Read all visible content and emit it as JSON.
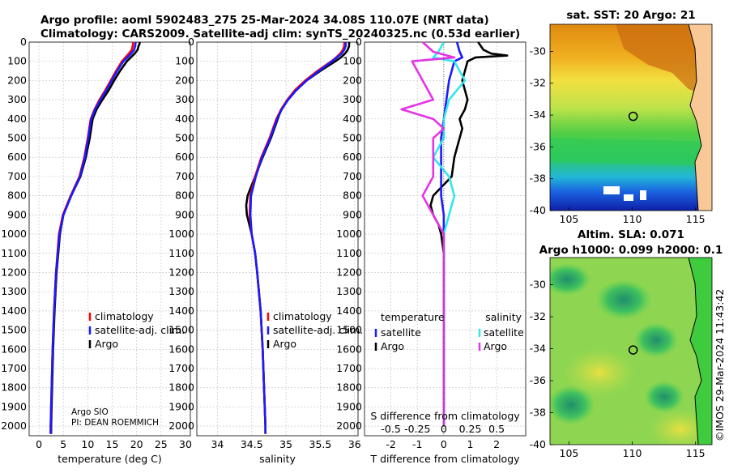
{
  "header": {
    "line1": "Argo profile: aoml 5902483_275 25-Mar-2024 34.08S 110.07E (NRT data)",
    "line2": "Climatology: CARS2009. Satellite-adj clim: synTS_20240325.nc (0.53d earlier)"
  },
  "colors": {
    "climatology": "#ff0000",
    "satellite": "#1a1aff",
    "argo": "#000000",
    "sat_salinity": "#33e6f0",
    "argo_salinity": "#e633e6"
  },
  "chart_data": [
    {
      "type": "line",
      "id": "temperature",
      "xlabel": "temperature (deg C)",
      "xlim": [
        -2,
        31
      ],
      "ylim": [
        0,
        2050
      ],
      "xticks": [
        0,
        5,
        10,
        15,
        20,
        25,
        30
      ],
      "yticks": [
        0,
        100,
        200,
        300,
        400,
        500,
        600,
        700,
        800,
        900,
        1000,
        1100,
        1200,
        1300,
        1400,
        1500,
        1600,
        1700,
        1800,
        1900,
        2000
      ],
      "legend": [
        "climatology",
        "satellite-adj. clim.",
        "Argo"
      ],
      "credit": [
        "Argo SIO",
        "PI: DEAN ROEMMICH"
      ],
      "series": [
        {
          "name": "Argo",
          "depth": [
            0,
            10,
            20,
            40,
            60,
            80,
            100,
            150,
            200,
            250,
            300,
            350,
            400,
            500,
            600,
            700,
            800,
            900,
            1000,
            1200,
            1400,
            1600,
            1800,
            2000,
            2040
          ],
          "values": [
            20.6,
            20.6,
            20.4,
            20.2,
            19.6,
            18.8,
            18.0,
            16.6,
            15.4,
            14.3,
            13.0,
            11.8,
            11.0,
            10.4,
            9.6,
            8.5,
            6.6,
            5.0,
            4.3,
            3.6,
            3.2,
            2.9,
            2.7,
            2.5,
            2.5
          ]
        },
        {
          "name": "climatology",
          "depth": [
            0,
            20,
            40,
            60,
            80,
            100,
            150,
            200,
            250,
            300,
            350,
            400,
            500,
            600,
            700,
            800,
            900,
            1000,
            1200,
            1400,
            1600,
            1800,
            2000,
            2040
          ],
          "values": [
            19.3,
            19.2,
            19.0,
            18.4,
            17.7,
            17.0,
            15.8,
            14.7,
            13.6,
            12.4,
            11.4,
            10.6,
            10.0,
            9.3,
            8.3,
            6.5,
            4.9,
            4.1,
            3.5,
            3.1,
            2.8,
            2.6,
            2.4,
            2.4
          ]
        },
        {
          "name": "satellite",
          "depth": [
            0,
            20,
            40,
            60,
            80,
            100,
            150,
            200,
            250,
            300,
            350,
            400,
            500,
            600,
            700,
            800,
            900,
            1000,
            1200,
            1400,
            1600,
            1800,
            2000,
            2040
          ],
          "values": [
            19.8,
            19.7,
            19.5,
            18.9,
            18.1,
            17.3,
            16.0,
            14.9,
            13.8,
            12.6,
            11.5,
            10.7,
            10.1,
            9.4,
            8.4,
            6.6,
            5.0,
            4.2,
            3.5,
            3.1,
            2.8,
            2.6,
            2.4,
            2.4
          ]
        }
      ]
    },
    {
      "type": "line",
      "id": "salinity",
      "xlabel": "salinity",
      "xlim": [
        33.7,
        36.05
      ],
      "ylim": [
        0,
        2050
      ],
      "xticks": [
        34,
        34.5,
        35,
        35.5,
        36
      ],
      "xticklabels": [
        "34",
        "34.5",
        "35",
        "35.5",
        "36"
      ],
      "legend": [
        "climatology",
        "satellite-adj. clim.",
        "Argo"
      ],
      "series": [
        {
          "name": "Argo",
          "depth": [
            0,
            20,
            40,
            60,
            80,
            100,
            150,
            200,
            250,
            300,
            350,
            400,
            500,
            600,
            700,
            800,
            850,
            900,
            1000,
            1100,
            1200,
            1400,
            1600,
            1800,
            2000,
            2040
          ],
          "values": [
            35.92,
            35.92,
            35.9,
            35.86,
            35.8,
            35.72,
            35.5,
            35.3,
            35.15,
            35.03,
            34.93,
            34.88,
            34.78,
            34.66,
            34.55,
            34.44,
            34.42,
            34.43,
            34.5,
            34.55,
            34.58,
            34.63,
            34.66,
            34.68,
            34.7,
            34.7
          ]
        },
        {
          "name": "climatology",
          "depth": [
            0,
            20,
            40,
            60,
            80,
            100,
            150,
            200,
            250,
            300,
            350,
            400,
            500,
            600,
            700,
            800,
            900,
            1000,
            1100,
            1200,
            1400,
            1600,
            1800,
            2000,
            2040
          ],
          "values": [
            35.85,
            35.85,
            35.83,
            35.79,
            35.73,
            35.66,
            35.46,
            35.28,
            35.13,
            35.02,
            34.93,
            34.86,
            34.76,
            34.64,
            34.55,
            34.48,
            34.47,
            34.5,
            34.55,
            34.58,
            34.63,
            34.66,
            34.68,
            34.7,
            34.7
          ]
        },
        {
          "name": "satellite",
          "depth": [
            0,
            20,
            40,
            60,
            80,
            100,
            150,
            200,
            250,
            300,
            350,
            400,
            500,
            600,
            700,
            800,
            900,
            1000,
            1100,
            1200,
            1400,
            1600,
            1800,
            2000,
            2040
          ],
          "values": [
            35.87,
            35.87,
            35.85,
            35.81,
            35.74,
            35.67,
            35.48,
            35.3,
            35.15,
            35.03,
            34.94,
            34.87,
            34.77,
            34.65,
            34.56,
            34.49,
            34.48,
            34.5,
            34.55,
            34.58,
            34.63,
            34.66,
            34.68,
            34.7,
            34.7
          ]
        }
      ]
    },
    {
      "type": "line",
      "id": "difference",
      "xlabel": "T difference from climatology",
      "top_xlabel": "S difference from climatology",
      "xlim": [
        -3,
        3.1
      ],
      "ylim": [
        0,
        2050
      ],
      "xticks": [
        -2,
        -1,
        0,
        1,
        2
      ],
      "top_ticklabels": [
        "-0.5",
        "-0.25",
        "0",
        "0.25",
        "0.5"
      ],
      "legend": {
        "temperature": [
          "satellite",
          "Argo"
        ],
        "salinity": [
          "satellite",
          "Argo"
        ],
        "temperature_title": "temperature",
        "salinity_title": "salinity"
      },
      "series": [
        {
          "name": "T Argo",
          "depth": [
            0,
            20,
            40,
            60,
            70,
            80,
            100,
            150,
            200,
            250,
            300,
            350,
            400,
            450,
            500,
            550,
            600,
            700,
            800,
            850,
            900,
            950,
            1000,
            1100,
            1200,
            1500,
            2000
          ],
          "values": [
            1.3,
            1.4,
            1.5,
            1.8,
            2.4,
            1.2,
            0.9,
            0.8,
            0.7,
            0.8,
            0.9,
            0.8,
            0.6,
            0.7,
            0.6,
            0.5,
            0.4,
            0.3,
            -0.4,
            -0.5,
            -0.4,
            -0.2,
            -0.1,
            0,
            0,
            0,
            0
          ]
        },
        {
          "name": "T satellite",
          "depth": [
            0,
            50,
            80,
            100,
            150,
            200,
            300,
            400,
            500,
            600,
            700,
            800,
            900,
            1000,
            1200,
            2000
          ],
          "values": [
            0.5,
            0.6,
            0.7,
            0.4,
            0.3,
            0.2,
            0.1,
            0.0,
            -0.1,
            -0.1,
            -0.1,
            -0.1,
            0,
            0,
            0,
            0
          ]
        },
        {
          "name": "S satellite",
          "depth": [
            0,
            50,
            80,
            100,
            200,
            300,
            400,
            500,
            600,
            700,
            800,
            900,
            1000,
            1200,
            2000
          ],
          "values": [
            0,
            -0.05,
            -0.1,
            0.1,
            0.2,
            0.05,
            0,
            0,
            -0.1,
            0.05,
            0.1,
            0.05,
            0,
            0,
            0
          ]
        },
        {
          "name": "S Argo",
          "depth": [
            0,
            50,
            80,
            100,
            200,
            300,
            350,
            400,
            450,
            500,
            600,
            700,
            800,
            900,
            1000,
            1200,
            2000
          ],
          "values": [
            -0.2,
            -0.1,
            0.1,
            -0.3,
            -0.2,
            -0.1,
            -0.4,
            -0.1,
            0,
            -0.1,
            -0.1,
            -0.1,
            -0.2,
            -0.1,
            0,
            0,
            0
          ]
        }
      ]
    },
    {
      "type": "heatmap",
      "id": "sst_map",
      "title": "sat. SST: 20 Argo: 21",
      "xticks": [
        105,
        110,
        115
      ],
      "yticks": [
        -30,
        -32,
        -34,
        -36,
        -38,
        -40
      ],
      "xlim": [
        103.5,
        116.3
      ],
      "ylim": [
        -40,
        -28.3
      ],
      "marker": {
        "lon": 110.07,
        "lat": -34.08
      }
    },
    {
      "type": "heatmap",
      "id": "sla_map",
      "title": "Altim. SLA: 0.071",
      "subtitle": "Argo h1000: 0.099 h2000: 0.1",
      "xticks": [
        105,
        110,
        115
      ],
      "yticks": [
        -30,
        -32,
        -34,
        -36,
        -38,
        -40
      ],
      "xlim": [
        103.5,
        116.3
      ],
      "ylim": [
        -40,
        -28.3
      ],
      "marker": {
        "lon": 110.07,
        "lat": -34.08
      }
    }
  ],
  "stamp": "©IMOS 29-Mar-2024 11:43:42"
}
